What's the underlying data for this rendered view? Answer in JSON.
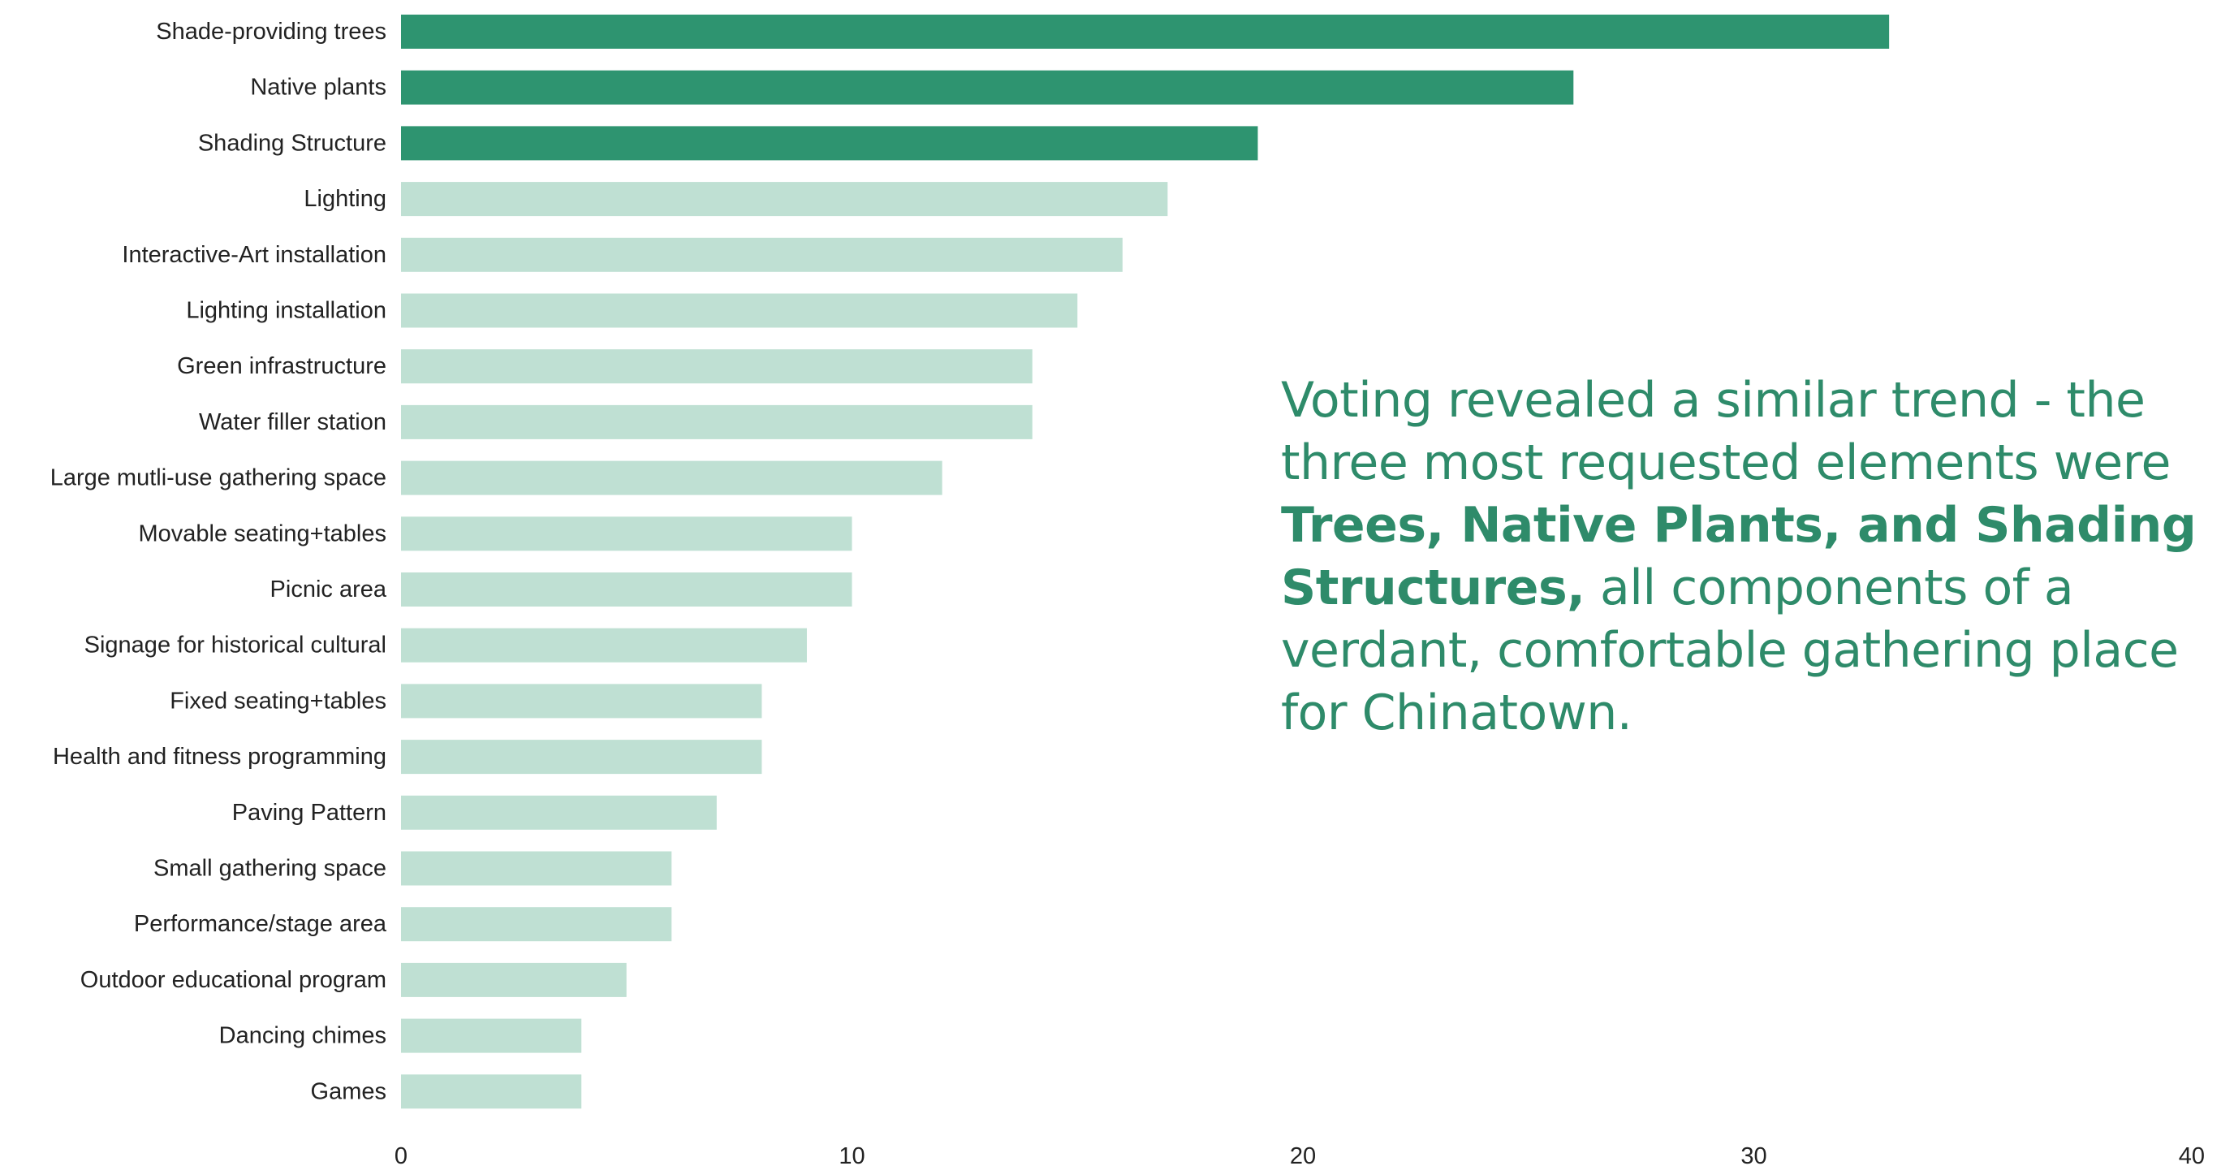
{
  "chart_data": {
    "type": "bar",
    "orientation": "horizontal",
    "categories": [
      "Shade-providing trees",
      "Native plants",
      "Shading Structure",
      "Lighting",
      "Interactive-Art installation",
      "Lighting installation",
      "Green infrastructure",
      "Water filler station",
      "Large mutli-use gathering space",
      "Movable seating+tables",
      "Picnic area",
      "Signage for historical cultural",
      "Fixed seating+tables",
      "Health and fitness programming",
      "Paving Pattern",
      "Small gathering space",
      "Performance/stage area",
      "Outdoor educational program",
      "Dancing chimes",
      "Games"
    ],
    "values": [
      33,
      26,
      19,
      17,
      16,
      15,
      14,
      14,
      12,
      10,
      10,
      9,
      8,
      8,
      7,
      6,
      6,
      5,
      4,
      4
    ],
    "highlighted_count": 3,
    "xlim": [
      0,
      40
    ],
    "xticks": [
      "0",
      "10",
      "20",
      "30",
      "40"
    ],
    "colors": {
      "highlight": "#2e9470",
      "normal": "#bfe0d3"
    },
    "title": "",
    "xlabel": "",
    "ylabel": "",
    "grid": false
  },
  "callout": {
    "part1": "Voting revealed a similar trend - the three most requested elements were ",
    "bold": "Trees, Native Plants, and Shading Structures,",
    "part2": " all components of a verdant, comfortable gathering place for Chinatown."
  }
}
